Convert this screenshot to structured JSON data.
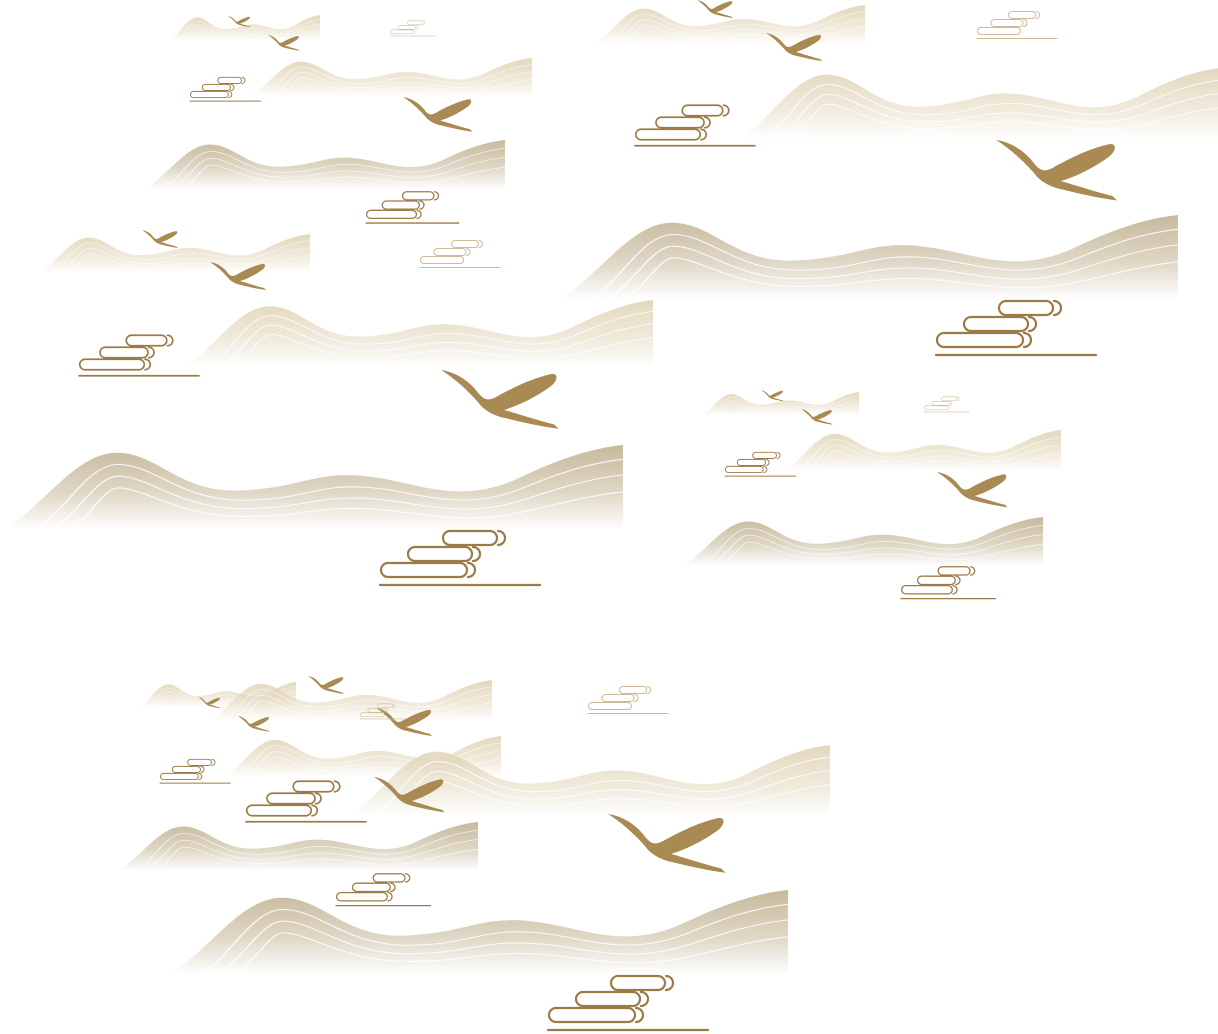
{
  "palette": {
    "background": "#ffffff",
    "hill": "#c4b596",
    "hill_light": "#e0d3b5",
    "hill_stripe": "#ffffff",
    "crane": "#a98a52",
    "cloud_stroke": "#9c7b46",
    "cloud_stroke_light": "#cdbb98"
  },
  "motifs": {
    "hill": "layered-hill-illustration",
    "crane": "flying-crane-illustration",
    "cloud": "auspicious-cloud-illustration"
  }
}
